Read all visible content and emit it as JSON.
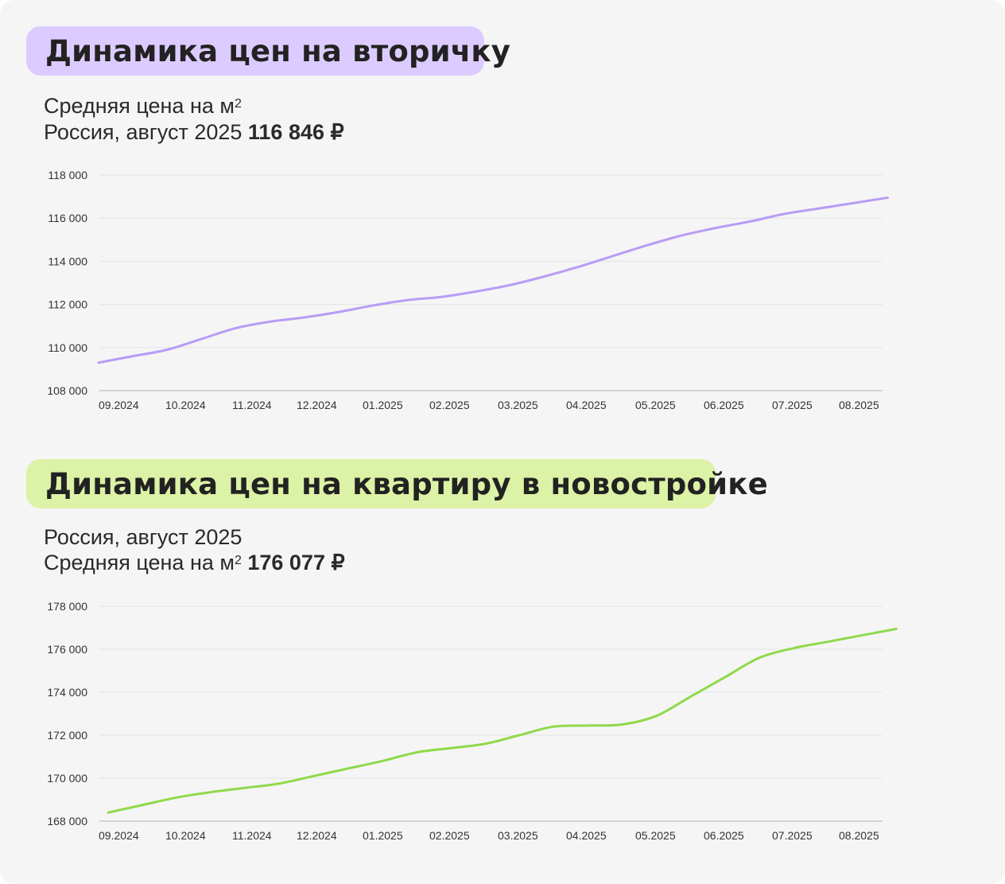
{
  "panel1": {
    "title": "Динамика цен на вторичку",
    "line1": "Средняя цена на м",
    "line1_sup": "2",
    "line2_prefix": "Россия, август 2025 ",
    "line2_value": "116 846 ₽"
  },
  "panel2": {
    "title": "Динамика цен на квартиру в новостройке",
    "line1": "Россия, август 2025",
    "line2_prefix": "Средняя цена на м",
    "line2_sup": "2",
    "line2_value": " 176 077 ₽"
  },
  "chart_data": [
    {
      "type": "line",
      "color": "#b89cf5",
      "x_tick_labels": [
        "09.2024",
        "10.2024",
        "11.2024",
        "12.2024",
        "01.2025",
        "02.2025",
        "03.2025",
        "04.2025",
        "05.2025",
        "06.2025",
        "07.2025",
        "08.2025"
      ],
      "y_tick_labels": [
        "108 000",
        "110 000",
        "112 000",
        "114 000",
        "116 000",
        "118 000"
      ],
      "ylim": [
        108000,
        118000
      ],
      "grid": true,
      "x": [
        0,
        0.5,
        1,
        1.5,
        2,
        2.5,
        3,
        3.5,
        4,
        4.5,
        5,
        5.5,
        6,
        6.5,
        7,
        7.5,
        8,
        8.5,
        9,
        9.5,
        10,
        10.5,
        11,
        11.5
      ],
      "values": [
        109300,
        109600,
        109900,
        110400,
        110900,
        111200,
        111400,
        111650,
        111950,
        112200,
        112350,
        112600,
        112900,
        113300,
        113750,
        114250,
        114750,
        115200,
        115550,
        115850,
        116200,
        116450,
        116700,
        116950
      ]
    },
    {
      "type": "line",
      "color": "#8fd94a",
      "x_tick_labels": [
        "09.2024",
        "10.2024",
        "11.2024",
        "12.2024",
        "01.2025",
        "02.2025",
        "03.2025",
        "04.2025",
        "05.2025",
        "06.2025",
        "07.2025",
        "08.2025"
      ],
      "y_tick_labels": [
        "168 000",
        "170 000",
        "172 000",
        "174 000",
        "176 000",
        "178 000"
      ],
      "ylim": [
        168000,
        178000
      ],
      "grid": true,
      "x": [
        0,
        0.5,
        1,
        1.5,
        2,
        2.5,
        3,
        3.5,
        4,
        4.5,
        5,
        5.5,
        6,
        6.5,
        7,
        7.5,
        8,
        8.5,
        9,
        9.5,
        10,
        10.5,
        11,
        11.5
      ],
      "values": [
        168400,
        168750,
        169100,
        169350,
        169550,
        169750,
        170100,
        170450,
        170800,
        171200,
        171400,
        171600,
        172000,
        172400,
        172450,
        172500,
        172900,
        173800,
        174700,
        175600,
        176050,
        176350,
        176650,
        176950
      ]
    }
  ]
}
